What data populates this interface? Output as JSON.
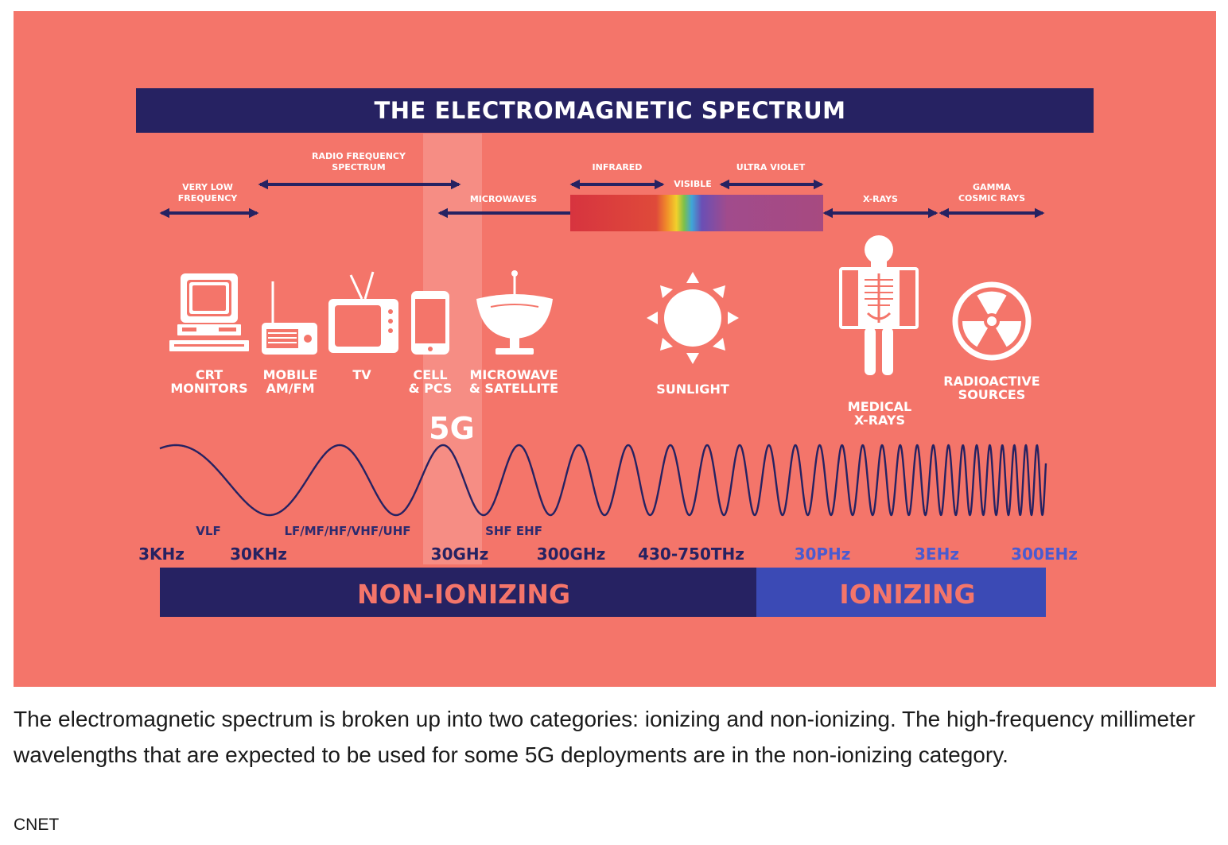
{
  "infographic": {
    "title": "THE  ELECTROMAGNETIC  SPECTRUM",
    "bands": {
      "very_low_frequency": [
        "VERY LOW",
        "FREQUENCY"
      ],
      "radio_frequency": [
        "RADIO FREQUENCY",
        "SPECTRUM"
      ],
      "microwaves": "MICROWAVES",
      "infrared": "INFRARED",
      "visible": "VISIBLE",
      "ultra_violet": "ULTRA VIOLET",
      "x_rays": "X-RAYS",
      "gamma": [
        "GAMMA",
        "COSMIC RAYS"
      ]
    },
    "sources": {
      "crt": [
        "CRT",
        "MONITORS"
      ],
      "mobile": [
        "MOBILE",
        "AM/FM"
      ],
      "tv": "TV",
      "cell": [
        "CELL",
        "& PCS"
      ],
      "microwave": [
        "MICROWAVE",
        "& SATELLITE"
      ],
      "sunlight": "SUNLIGHT",
      "medical": [
        "MEDICAL",
        "X-RAYS"
      ],
      "radioactive": [
        "RADIOACTIVE",
        "SOURCES"
      ]
    },
    "highlight_label": "5G",
    "designations": {
      "vlf": "VLF",
      "radio": "LF/MF/HF/VHF/UHF",
      "shf": "SHF EHF"
    },
    "frequencies": [
      "3KHz",
      "30KHz",
      "30GHz",
      "300GHz",
      "430-750THz",
      "30PHz",
      "3EHz",
      "300EHz"
    ],
    "categories": {
      "non_ionizing": "NON-IONIZING",
      "ionizing": "IONIZING"
    },
    "colors": {
      "background": "#f4756a",
      "navy": "#262262",
      "ionizing_blue": "#3b4ab5"
    }
  },
  "caption": "The electromagnetic spectrum is broken up into two categories: ionizing and non-ionizing. The high-frequency millimeter wavelengths that are expected to be used for some 5G deployments are in the non-ionizing category.",
  "credit": "CNET"
}
